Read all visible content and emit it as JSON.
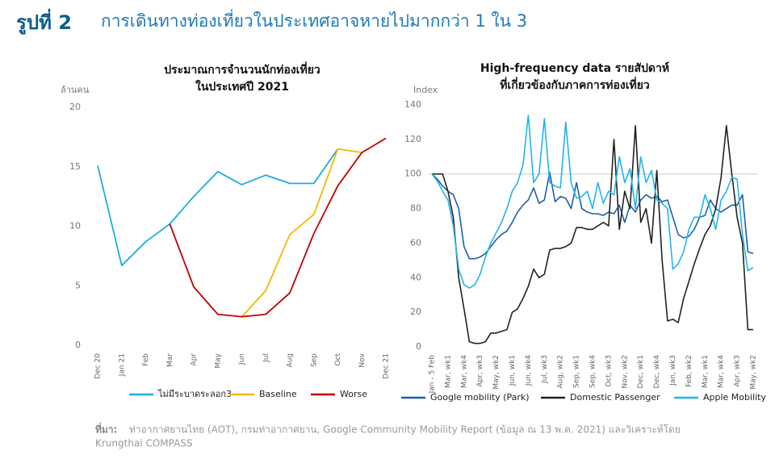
{
  "title": {
    "label": "รูปที่ 2",
    "text": "การเดินทางท่องเที่ยวในประเทศอาจหายไปมากกว่า 1 ใน 3"
  },
  "source": {
    "label": "ที่มา:",
    "lines": [
      "ท่าอากาศยานไทย (AOT), กรมท่าอากาศยาน, Google Community  Mobility Report (ข้อมูล ณ 13 พ.ค. 2021) และวิเคราะห์โดย",
      "Krungthai COMPASS"
    ]
  },
  "chart_data": [
    {
      "type": "line",
      "title": [
        "ประมาณการจำนวนนักท่องเที่ยว",
        "ในประเทศปี 2021"
      ],
      "y_label": "ล้านคน",
      "categories": [
        "Dec 20",
        "Jan 21",
        "Feb",
        "Mar",
        "Apr",
        "May",
        "Jun",
        "Jul",
        "Aug",
        "Sep",
        "Oct",
        "Nov",
        "Dec 21"
      ],
      "ylim": [
        0,
        20
      ],
      "yticks": [
        0,
        5,
        10,
        15,
        20
      ],
      "grid": false,
      "series": [
        {
          "name": "ไม่มีระบาดระลอก3",
          "color": "#1aaee0",
          "values": [
            15.1,
            6.7,
            8.7,
            10.2,
            12.5,
            14.6,
            13.5,
            14.3,
            13.6,
            13.6,
            16.5,
            null,
            null
          ]
        },
        {
          "name": "Baseline",
          "color": "#f5b800",
          "values": [
            null,
            null,
            null,
            null,
            null,
            null,
            2.4,
            4.6,
            9.3,
            11.0,
            16.5,
            16.2,
            null
          ]
        },
        {
          "name": "Worse",
          "color": "#c00000",
          "values": [
            null,
            null,
            null,
            10.2,
            4.9,
            2.6,
            2.4,
            2.6,
            4.4,
            9.4,
            13.4,
            16.2,
            17.4
          ]
        }
      ]
    },
    {
      "type": "line",
      "title": [
        "High-frequency data รายสัปดาห์",
        "ที่เกี่ยวข้องกับภาคการท่องเที่ยว"
      ],
      "y_label": "Index",
      "categories": [
        "Jan - 5 Feb",
        null,
        null,
        "Mar, wk1",
        null,
        null,
        "Mar, wk4",
        null,
        null,
        "Apr, wk3",
        null,
        null,
        "May, wk2",
        null,
        null,
        "Jun, wk1",
        null,
        null,
        "Jun, wk4",
        null,
        null,
        "Jul, wk3",
        null,
        null,
        "Aug, wk2",
        null,
        null,
        "Sep, wk1",
        null,
        null,
        "Sep, wk4",
        null,
        null,
        "Oct, wk3",
        null,
        null,
        "Nov, wk2",
        null,
        null,
        "Dec, wk1",
        null,
        null,
        "Dec, wk4",
        null,
        null,
        "Jan, wk3",
        null,
        null,
        "Feb, wk2",
        null,
        null,
        "Mar, wk1",
        null,
        null,
        "Mar, wk4",
        null,
        null,
        "Apr, wk3",
        null,
        null,
        "May, wk2"
      ],
      "ylim": [
        0,
        140
      ],
      "yticks": [
        0,
        20,
        40,
        60,
        80,
        100,
        120,
        140
      ],
      "grid": false,
      "hline": 100,
      "series": [
        {
          "name": "Google mobility (Park)",
          "color": "#1f5fa8",
          "values": [
            100,
            97,
            93,
            90,
            88,
            80,
            58,
            51,
            51,
            52,
            54,
            58,
            62,
            65,
            67,
            72,
            78,
            82,
            85,
            92,
            83,
            85,
            101,
            84,
            87,
            86,
            80,
            95,
            80,
            78,
            77,
            77,
            76,
            78,
            77,
            82,
            72,
            82,
            78,
            85,
            88,
            86,
            87,
            84,
            85,
            75,
            65,
            63,
            64,
            68,
            75,
            76,
            85,
            80,
            78,
            80,
            82,
            82,
            88,
            55,
            54
          ]
        },
        {
          "name": "Domestic Passenger",
          "color": "#222222",
          "values": [
            100,
            100,
            100,
            90,
            75,
            40,
            22,
            3,
            2,
            2,
            3,
            8,
            8,
            9,
            10,
            20,
            22,
            28,
            35,
            45,
            40,
            42,
            56,
            57,
            57,
            58,
            60,
            69,
            69,
            68,
            68,
            70,
            72,
            70,
            120,
            68,
            90,
            80,
            128,
            72,
            80,
            60,
            102,
            50,
            15,
            16,
            14,
            28,
            38,
            48,
            57,
            65,
            70,
            80,
            98,
            128,
            100,
            75,
            60,
            10,
            10
          ]
        },
        {
          "name": "Apple Mobility",
          "color": "#22b5e8",
          "values": [
            100,
            96,
            90,
            85,
            70,
            45,
            36,
            34,
            36,
            42,
            52,
            60,
            66,
            72,
            80,
            90,
            95,
            105,
            134,
            95,
            100,
            132,
            95,
            93,
            92,
            130,
            95,
            86,
            87,
            90,
            80,
            95,
            83,
            90,
            88,
            110,
            95,
            103,
            80,
            110,
            95,
            102,
            85,
            83,
            80,
            45,
            48,
            55,
            68,
            75,
            75,
            88,
            80,
            68,
            85,
            90,
            98,
            97,
            65,
            44,
            46
          ]
        }
      ]
    }
  ]
}
